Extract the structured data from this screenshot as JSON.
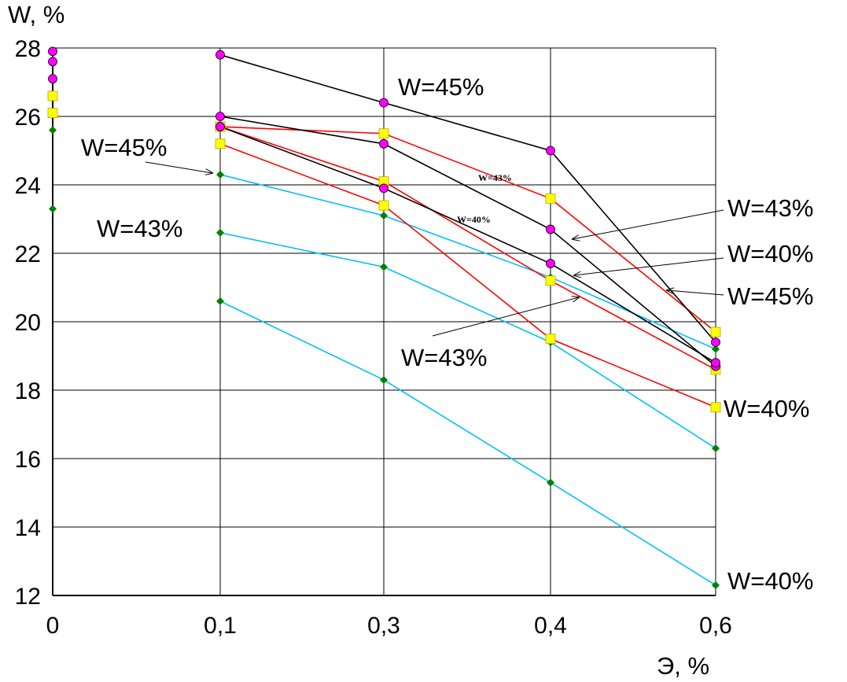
{
  "chart_data": {
    "type": "line",
    "title": "",
    "xlabel": "Э, %",
    "ylabel": "W, %",
    "x_ticks": [
      "0",
      "0,1",
      "0,3",
      "0,4",
      "0,6"
    ],
    "y_ticks": [
      "12",
      "14",
      "16",
      "18",
      "20",
      "22",
      "24",
      "26",
      "28"
    ],
    "ylim": [
      12,
      28
    ],
    "grid": true,
    "x_categorical_positions": true,
    "series": [
      {
        "color": "#000000",
        "marker": "circle",
        "marker_color": "#ff00ff",
        "x": [
          "0,1",
          "0,3",
          "0,4",
          "0,6"
        ],
        "y": [
          27.8,
          26.4,
          25.0,
          19.4
        ]
      },
      {
        "color": "#000000",
        "marker": "circle",
        "marker_color": "#ff00ff",
        "x": [
          "0,1",
          "0,3",
          "0,4",
          "0,6"
        ],
        "y": [
          26.0,
          25.2,
          22.7,
          18.7
        ]
      },
      {
        "color": "#000000",
        "marker": "circle",
        "marker_color": "#ff00ff",
        "x": [
          "0,1",
          "0,3",
          "0,4",
          "0,6"
        ],
        "y": [
          25.7,
          23.9,
          21.7,
          18.8
        ]
      },
      {
        "color": "#ff0000",
        "marker": "square",
        "marker_color": "#ffff00",
        "x": [
          "0,1",
          "0,3",
          "0,4",
          "0,6"
        ],
        "y": [
          25.7,
          25.5,
          23.6,
          19.7
        ]
      },
      {
        "color": "#ff0000",
        "marker": "square",
        "marker_color": "#ffff00",
        "x": [
          "0,1",
          "0,3",
          "0,4",
          "0,6"
        ],
        "y": [
          25.7,
          24.1,
          21.2,
          18.6
        ]
      },
      {
        "color": "#ff0000",
        "marker": "square",
        "marker_color": "#ffff00",
        "x": [
          "0,1",
          "0,3",
          "0,4",
          "0,6"
        ],
        "y": [
          25.2,
          23.4,
          19.5,
          17.5
        ]
      },
      {
        "color": "#00bfff",
        "marker": "diamond",
        "marker_color": "#008000",
        "x": [
          "0,1",
          "0,3",
          "0,4",
          "0,6"
        ],
        "y": [
          24.3,
          23.1,
          21.3,
          19.2
        ]
      },
      {
        "color": "#00bfff",
        "marker": "diamond",
        "marker_color": "#008000",
        "x": [
          "0,1",
          "0,3",
          "0,4",
          "0,6"
        ],
        "y": [
          22.6,
          21.6,
          19.4,
          16.3
        ]
      },
      {
        "color": "#00bfff",
        "marker": "diamond",
        "marker_color": "#008000",
        "x": [
          "0,1",
          "0,3",
          "0,4",
          "0,6"
        ],
        "y": [
          20.6,
          18.3,
          15.3,
          12.3
        ]
      }
    ],
    "points_at_zero": [
      {
        "marker": "circle",
        "marker_color": "#ff00ff",
        "y": [
          27.9,
          27.6,
          27.1
        ]
      },
      {
        "marker": "square",
        "marker_color": "#ffff00",
        "y": [
          26.6,
          26.1
        ]
      },
      {
        "marker": "diamond",
        "marker_color": "#008000",
        "y": [
          25.6,
          23.3
        ]
      }
    ],
    "annotations": [
      {
        "text": "W=45%",
        "size": "large"
      },
      {
        "text": "W=45%",
        "size": "large"
      },
      {
        "text": "W=43%",
        "size": "large"
      },
      {
        "text": "W=43%",
        "size": "small"
      },
      {
        "text": "W=40%",
        "size": "small"
      },
      {
        "text": "W=43%",
        "size": "large"
      },
      {
        "text": "W=40%",
        "size": "large"
      },
      {
        "text": "W=45%",
        "size": "large"
      },
      {
        "text": "W=43%",
        "size": "large"
      },
      {
        "text": "W=40%",
        "size": "large"
      },
      {
        "text": "W=40%",
        "size": "large"
      }
    ]
  }
}
